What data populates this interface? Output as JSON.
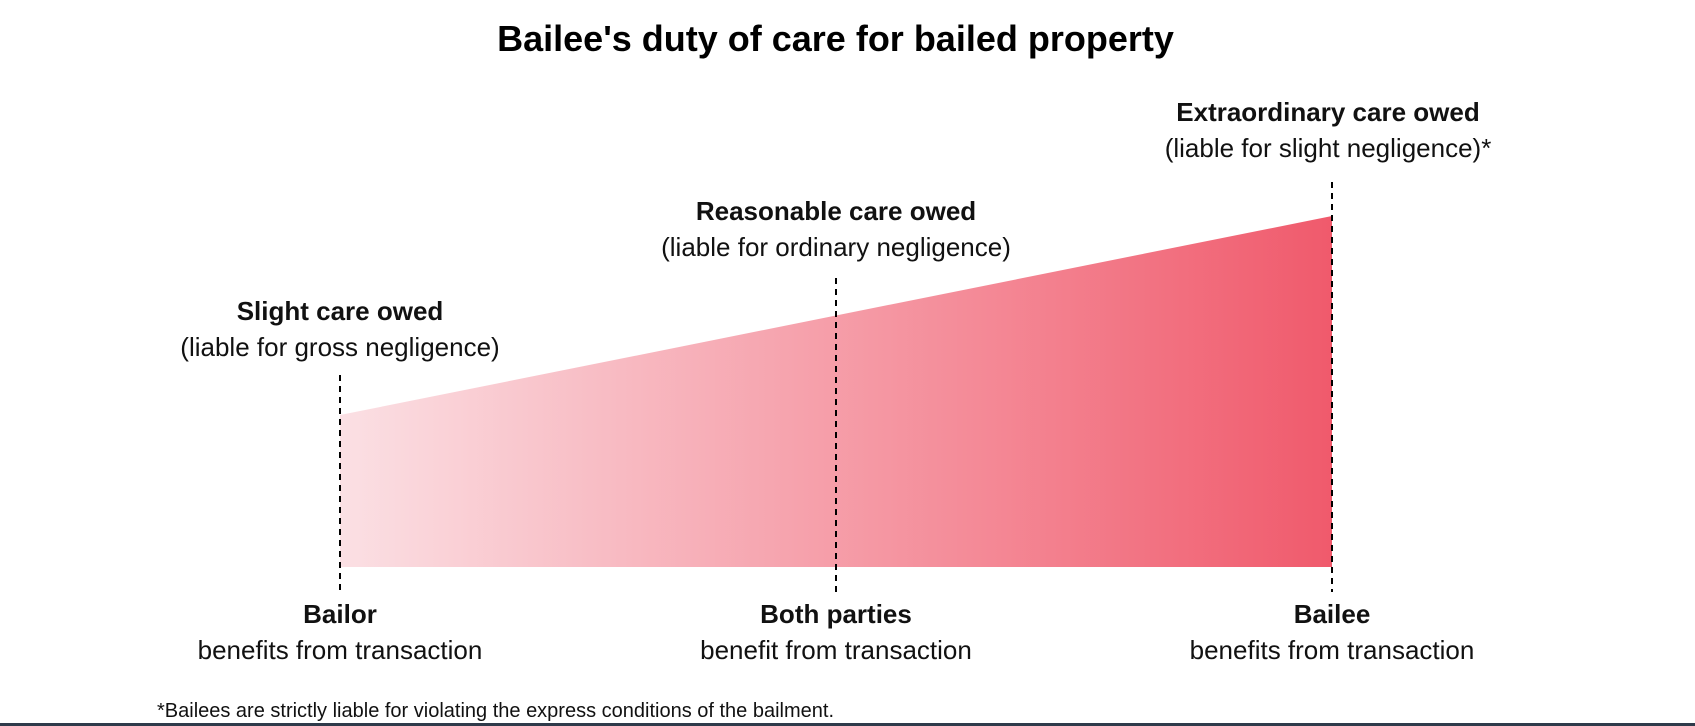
{
  "title": "Bailee's duty of care for bailed property",
  "levels": [
    {
      "care": "Slight care owed",
      "liability": "(liable for gross negligence)",
      "party": "Bailor",
      "benefit": "benefits from transaction"
    },
    {
      "care": "Reasonable care owed",
      "liability": "(liable for ordinary negligence)",
      "party": "Both parties",
      "benefit": "benefit from transaction"
    },
    {
      "care": "Extraordinary care owed",
      "liability": "(liable for slight negligence)*",
      "party": "Bailee",
      "benefit": "benefits from transaction"
    }
  ],
  "footnote": "*Bailees are strictly liable for violating the express conditions of the bailment.",
  "colors": {
    "gradient_start": "#fbe0e4",
    "gradient_end": "#f05a6c",
    "divider": "#000000",
    "bottom_border": "#2f3a4a"
  }
}
